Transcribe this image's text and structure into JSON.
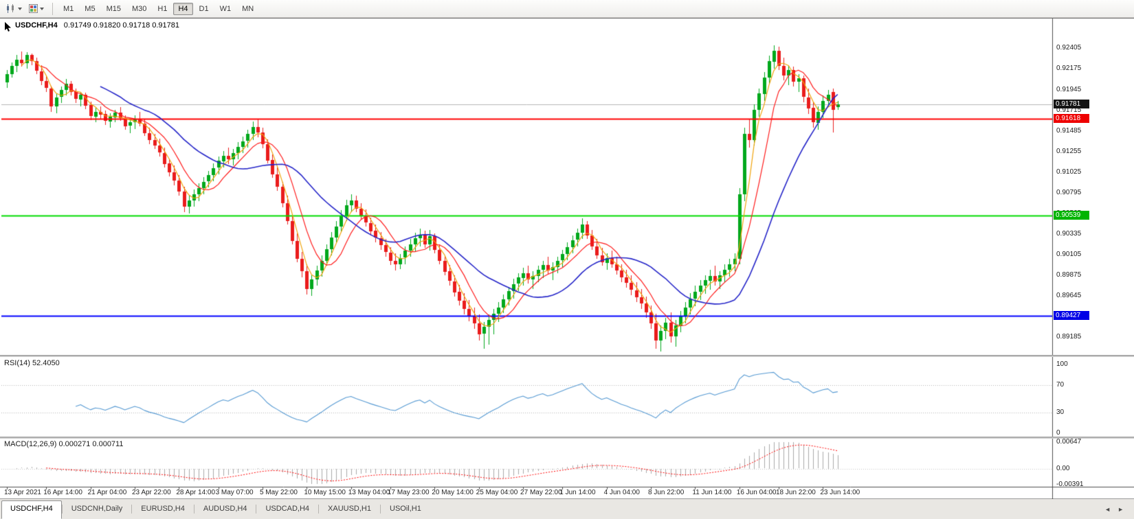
{
  "toolbar": {
    "icons": [
      {
        "name": "candlestick-chart-icon"
      },
      {
        "name": "chart-colors-icon"
      }
    ],
    "timeframes": {
      "options": [
        "M1",
        "M5",
        "M15",
        "M30",
        "H1",
        "H4",
        "D1",
        "W1",
        "MN"
      ],
      "active": "H4"
    }
  },
  "chart": {
    "title": {
      "symbol_period": "USDCHF,H4",
      "ohlc": "0.91749 0.91820 0.91718 0.91781"
    },
    "price_axis": {
      "ticks": [
        "0.92405",
        "0.92175",
        "0.91945",
        "0.91715",
        "0.91485",
        "0.91255",
        "0.91025",
        "0.90795",
        "0.90565",
        "0.90335",
        "0.90105",
        "0.89875",
        "0.89645",
        "0.89415",
        "0.89185"
      ]
    },
    "badges": [
      {
        "name": "current-price",
        "label": "0.91781",
        "value": 0.91781,
        "bg": "#141414",
        "fg": "#ffffff"
      },
      {
        "name": "resistance-line",
        "label": "0.91618",
        "value": 0.91618,
        "bg": "#ee0000",
        "fg": "#ffffff"
      },
      {
        "name": "support-line-green",
        "label": "0.90539",
        "value": 0.90539,
        "bg": "#00b400",
        "fg": "#ffffff"
      },
      {
        "name": "support-line-blue",
        "label": "0.89427",
        "value": 0.89427,
        "bg": "#0000e6",
        "fg": "#ffffff"
      }
    ],
    "time_axis": {
      "labels": [
        {
          "label": "13 Apr 2021",
          "at": 0
        },
        {
          "label": "16 Apr 14:00",
          "at": 8
        },
        {
          "label": "21 Apr 04:00",
          "at": 17
        },
        {
          "label": "23 Apr 22:00",
          "at": 26
        },
        {
          "label": "28 Apr 14:00",
          "at": 35
        },
        {
          "label": "3 May 07:00",
          "at": 43
        },
        {
          "label": "5 May 22:00",
          "at": 52
        },
        {
          "label": "10 May 15:00",
          "at": 61
        },
        {
          "label": "13 May 04:00",
          "at": 70
        },
        {
          "label": "17 May 23:00",
          "at": 78
        },
        {
          "label": "20 May 14:00",
          "at": 87
        },
        {
          "label": "25 May 04:00",
          "at": 96
        },
        {
          "label": "27 May 22:00",
          "at": 105
        },
        {
          "label": "1 Jun 14:00",
          "at": 113
        },
        {
          "label": "4 Jun 04:00",
          "at": 122
        },
        {
          "label": "8 Jun 22:00",
          "at": 131
        },
        {
          "label": "11 Jun 14:00",
          "at": 140
        },
        {
          "label": "16 Jun 04:00",
          "at": 149
        },
        {
          "label": "18 Jun 22:00",
          "at": 157
        },
        {
          "label": "23 Jun 14:00",
          "at": 166
        }
      ]
    }
  },
  "indicators": {
    "rsi": {
      "label": "RSI(14) 52.4050",
      "period": 14,
      "ticks": [
        "100",
        "70",
        "30",
        "0"
      ],
      "levels": [
        70,
        30
      ],
      "color": "#5599d2",
      "range": [
        0,
        100
      ]
    },
    "macd": {
      "label": "MACD(12,26,9) 0.000271 0.000711",
      "params": [
        12,
        26,
        9
      ],
      "values": [
        "0.000271",
        "0.000711"
      ],
      "ticks": [
        "0.00647",
        "0.00",
        "-0.00391"
      ],
      "range": [
        -0.00391,
        0.00647
      ],
      "hist_color": "#a8a8a8",
      "signal_color": "#ff0000"
    }
  },
  "tabs": {
    "items": [
      {
        "label": "USDCHF,H4",
        "active": true
      },
      {
        "label": "USDCNH,Daily",
        "active": false
      },
      {
        "label": "EURUSD,H4",
        "active": false
      },
      {
        "label": "AUDUSD,H4",
        "active": false
      },
      {
        "label": "USDCAD,H4",
        "active": false
      },
      {
        "label": "XAUUSD,H1",
        "active": false
      },
      {
        "label": "USOil,H1",
        "active": false
      }
    ],
    "scroll_left": "◄",
    "scroll_right": "►"
  },
  "chart_data": {
    "type": "candlestick",
    "symbol": "USDCHF",
    "timeframe": "H4",
    "price_range": [
      0.8902,
      0.9266
    ],
    "colors": {
      "bull": "#00a81c",
      "bear": "#ea1c1c",
      "background": "#ffffff",
      "current_line": "#b4b4b4"
    },
    "overlays": [
      {
        "name": "ma-fast",
        "period": 4,
        "color": "#f0a30a",
        "width": 1.2
      },
      {
        "name": "ma-medium",
        "period": 8,
        "color": "#ff1a1a",
        "width": 1.2
      },
      {
        "name": "ma-slow",
        "period": 20,
        "color": "#2424c8",
        "width": 1.6
      }
    ],
    "hlines": [
      {
        "value": 0.91781,
        "color": "#b4b4b4",
        "width": 1,
        "style": "current"
      },
      {
        "value": 0.91618,
        "color": "#ff0000",
        "width": 2,
        "style": "solid"
      },
      {
        "value": 0.90539,
        "color": "#00dc00",
        "width": 2,
        "style": "solid"
      },
      {
        "value": 0.89427,
        "color": "#0000ff",
        "width": 2,
        "style": "solid"
      }
    ],
    "candles": [
      [
        0.9203,
        0.9216,
        0.9196,
        0.9212
      ],
      [
        0.9212,
        0.9225,
        0.9208,
        0.9221
      ],
      [
        0.9221,
        0.9233,
        0.9214,
        0.9228
      ],
      [
        0.9228,
        0.9237,
        0.922,
        0.9224
      ],
      [
        0.9224,
        0.9236,
        0.9218,
        0.9233
      ],
      [
        0.9233,
        0.9235,
        0.9222,
        0.9226
      ],
      [
        0.9226,
        0.923,
        0.9212,
        0.9215
      ],
      [
        0.9215,
        0.9222,
        0.92,
        0.9204
      ],
      [
        0.9204,
        0.921,
        0.9192,
        0.9196
      ],
      [
        0.9196,
        0.9199,
        0.917,
        0.9176
      ],
      [
        0.9176,
        0.919,
        0.9168,
        0.9186
      ],
      [
        0.9186,
        0.9198,
        0.918,
        0.9194
      ],
      [
        0.9194,
        0.9206,
        0.9188,
        0.9201
      ],
      [
        0.9201,
        0.9204,
        0.9188,
        0.9192
      ],
      [
        0.9192,
        0.9196,
        0.918,
        0.9184
      ],
      [
        0.9184,
        0.9192,
        0.9176,
        0.9189
      ],
      [
        0.9189,
        0.9191,
        0.9173,
        0.9177
      ],
      [
        0.9177,
        0.9181,
        0.916,
        0.9165
      ],
      [
        0.9165,
        0.9174,
        0.9158,
        0.917
      ],
      [
        0.917,
        0.9176,
        0.9162,
        0.9167
      ],
      [
        0.9167,
        0.9171,
        0.9155,
        0.9159
      ],
      [
        0.9159,
        0.9168,
        0.9152,
        0.9164
      ],
      [
        0.9164,
        0.9172,
        0.9158,
        0.9169
      ],
      [
        0.9169,
        0.9175,
        0.916,
        0.9163
      ],
      [
        0.9163,
        0.9166,
        0.915,
        0.9154
      ],
      [
        0.9154,
        0.9162,
        0.9146,
        0.9158
      ],
      [
        0.9158,
        0.9166,
        0.9151,
        0.9162
      ],
      [
        0.9162,
        0.917,
        0.9154,
        0.9157
      ],
      [
        0.9157,
        0.9161,
        0.9143,
        0.9146
      ],
      [
        0.9146,
        0.9152,
        0.9134,
        0.9138
      ],
      [
        0.9138,
        0.9145,
        0.9128,
        0.9132
      ],
      [
        0.9132,
        0.914,
        0.912,
        0.9124
      ],
      [
        0.9124,
        0.913,
        0.9108,
        0.9112
      ],
      [
        0.9112,
        0.9118,
        0.9098,
        0.9102
      ],
      [
        0.9102,
        0.911,
        0.9088,
        0.9093
      ],
      [
        0.9093,
        0.9099,
        0.9076,
        0.9081
      ],
      [
        0.9081,
        0.9086,
        0.9058,
        0.9064
      ],
      [
        0.9064,
        0.9076,
        0.9056,
        0.9071
      ],
      [
        0.9071,
        0.9083,
        0.9064,
        0.9078
      ],
      [
        0.9078,
        0.909,
        0.907,
        0.9085
      ],
      [
        0.9085,
        0.9097,
        0.9078,
        0.9092
      ],
      [
        0.9092,
        0.9104,
        0.9086,
        0.9099
      ],
      [
        0.9099,
        0.9112,
        0.9092,
        0.9107
      ],
      [
        0.9107,
        0.912,
        0.91,
        0.9115
      ],
      [
        0.9115,
        0.9126,
        0.9108,
        0.9121
      ],
      [
        0.9121,
        0.913,
        0.9112,
        0.9117
      ],
      [
        0.9117,
        0.9128,
        0.911,
        0.9124
      ],
      [
        0.9124,
        0.9136,
        0.9117,
        0.9131
      ],
      [
        0.9131,
        0.9142,
        0.9124,
        0.9137
      ],
      [
        0.9137,
        0.915,
        0.913,
        0.9145
      ],
      [
        0.9145,
        0.9159,
        0.9138,
        0.9153
      ],
      [
        0.9153,
        0.9161,
        0.9141,
        0.9147
      ],
      [
        0.9147,
        0.9152,
        0.9129,
        0.9134
      ],
      [
        0.9134,
        0.9139,
        0.9112,
        0.9116
      ],
      [
        0.9116,
        0.9122,
        0.9096,
        0.91
      ],
      [
        0.91,
        0.9108,
        0.9082,
        0.9086
      ],
      [
        0.9086,
        0.9092,
        0.9064,
        0.9068
      ],
      [
        0.9068,
        0.9076,
        0.9044,
        0.9048
      ],
      [
        0.9048,
        0.9056,
        0.9022,
        0.9026
      ],
      [
        0.9026,
        0.9034,
        0.9002,
        0.9006
      ],
      [
        0.9006,
        0.9014,
        0.8986,
        0.8992
      ],
      [
        0.8992,
        0.9,
        0.8966,
        0.8972
      ],
      [
        0.8972,
        0.8988,
        0.8965,
        0.8983
      ],
      [
        0.8983,
        0.8998,
        0.8976,
        0.8993
      ],
      [
        0.8993,
        0.901,
        0.8986,
        0.9004
      ],
      [
        0.9004,
        0.9022,
        0.8998,
        0.9017
      ],
      [
        0.9017,
        0.9036,
        0.901,
        0.903
      ],
      [
        0.903,
        0.9048,
        0.9024,
        0.9042
      ],
      [
        0.9042,
        0.906,
        0.9036,
        0.9054
      ],
      [
        0.9054,
        0.9072,
        0.9048,
        0.9066
      ],
      [
        0.9066,
        0.9078,
        0.9058,
        0.9071
      ],
      [
        0.9071,
        0.9076,
        0.9058,
        0.9062
      ],
      [
        0.9062,
        0.9068,
        0.905,
        0.9054
      ],
      [
        0.9054,
        0.9061,
        0.9042,
        0.9046
      ],
      [
        0.9046,
        0.9052,
        0.9032,
        0.9037
      ],
      [
        0.9037,
        0.9044,
        0.9024,
        0.9029
      ],
      [
        0.9029,
        0.9036,
        0.9016,
        0.9021
      ],
      [
        0.9021,
        0.9028,
        0.9008,
        0.9013
      ],
      [
        0.9013,
        0.9019,
        0.8999,
        0.9004
      ],
      [
        0.9004,
        0.9012,
        0.8993,
        0.9
      ],
      [
        0.9,
        0.9011,
        0.8994,
        0.9007
      ],
      [
        0.9007,
        0.902,
        0.9,
        0.9015
      ],
      [
        0.9015,
        0.9028,
        0.9008,
        0.9022
      ],
      [
        0.9022,
        0.9035,
        0.9014,
        0.9029
      ],
      [
        0.9029,
        0.904,
        0.902,
        0.9033
      ],
      [
        0.9033,
        0.9037,
        0.9018,
        0.9022
      ],
      [
        0.9022,
        0.9038,
        0.9015,
        0.9031
      ],
      [
        0.9031,
        0.9034,
        0.9012,
        0.9016
      ],
      [
        0.9016,
        0.9022,
        0.9,
        0.9004
      ],
      [
        0.9004,
        0.901,
        0.8988,
        0.8992
      ],
      [
        0.8992,
        0.8999,
        0.8976,
        0.8981
      ],
      [
        0.8981,
        0.8988,
        0.8964,
        0.8969
      ],
      [
        0.8969,
        0.8977,
        0.8954,
        0.8959
      ],
      [
        0.8959,
        0.8968,
        0.8944,
        0.895
      ],
      [
        0.895,
        0.896,
        0.8936,
        0.8942
      ],
      [
        0.8942,
        0.8952,
        0.8928,
        0.8934
      ],
      [
        0.8934,
        0.8944,
        0.8915,
        0.8922
      ],
      [
        0.8922,
        0.8936,
        0.8906,
        0.893
      ],
      [
        0.893,
        0.8944,
        0.891,
        0.8938
      ],
      [
        0.8938,
        0.895,
        0.8922,
        0.8945
      ],
      [
        0.8945,
        0.8958,
        0.8936,
        0.8952
      ],
      [
        0.8952,
        0.8966,
        0.8945,
        0.8961
      ],
      [
        0.8961,
        0.8975,
        0.8954,
        0.897
      ],
      [
        0.897,
        0.8984,
        0.8962,
        0.8978
      ],
      [
        0.8978,
        0.899,
        0.897,
        0.8985
      ],
      [
        0.8985,
        0.8996,
        0.8976,
        0.899
      ],
      [
        0.899,
        0.8998,
        0.8978,
        0.8983
      ],
      [
        0.8983,
        0.8992,
        0.8972,
        0.8987
      ],
      [
        0.8987,
        0.8998,
        0.898,
        0.8994
      ],
      [
        0.8994,
        0.9004,
        0.8985,
        0.8999
      ],
      [
        0.8999,
        0.9008,
        0.8988,
        0.8993
      ],
      [
        0.8993,
        0.9002,
        0.8982,
        0.8997
      ],
      [
        0.8997,
        0.9008,
        0.899,
        0.9004
      ],
      [
        0.9004,
        0.9016,
        0.8997,
        0.9011
      ],
      [
        0.9011,
        0.9024,
        0.9004,
        0.9019
      ],
      [
        0.9019,
        0.9032,
        0.9012,
        0.9027
      ],
      [
        0.9027,
        0.904,
        0.902,
        0.9035
      ],
      [
        0.9035,
        0.9051,
        0.9028,
        0.9044
      ],
      [
        0.9044,
        0.9048,
        0.9028,
        0.9032
      ],
      [
        0.9032,
        0.9038,
        0.9016,
        0.902
      ],
      [
        0.902,
        0.9028,
        0.9006,
        0.901
      ],
      [
        0.901,
        0.9018,
        0.8998,
        0.9002
      ],
      [
        0.9002,
        0.9012,
        0.8994,
        0.9007
      ],
      [
        0.9007,
        0.9015,
        0.8996,
        0.9
      ],
      [
        0.9,
        0.9008,
        0.8988,
        0.8993
      ],
      [
        0.8993,
        0.9,
        0.898,
        0.8985
      ],
      [
        0.8985,
        0.8994,
        0.8974,
        0.8979
      ],
      [
        0.8979,
        0.8988,
        0.8966,
        0.8971
      ],
      [
        0.8971,
        0.898,
        0.8958,
        0.8963
      ],
      [
        0.8963,
        0.8972,
        0.895,
        0.8956
      ],
      [
        0.8956,
        0.8964,
        0.894,
        0.8946
      ],
      [
        0.8946,
        0.8954,
        0.8928,
        0.8934
      ],
      [
        0.8934,
        0.8945,
        0.8906,
        0.8915
      ],
      [
        0.8915,
        0.8932,
        0.8903,
        0.8926
      ],
      [
        0.8926,
        0.894,
        0.8916,
        0.8935
      ],
      [
        0.8935,
        0.8946,
        0.8912,
        0.892
      ],
      [
        0.892,
        0.8938,
        0.8908,
        0.8932
      ],
      [
        0.8932,
        0.8948,
        0.8924,
        0.8942
      ],
      [
        0.8942,
        0.8958,
        0.8934,
        0.8952
      ],
      [
        0.8952,
        0.8968,
        0.8944,
        0.8961
      ],
      [
        0.8961,
        0.8976,
        0.8953,
        0.8969
      ],
      [
        0.8969,
        0.8982,
        0.896,
        0.8976
      ],
      [
        0.8976,
        0.8988,
        0.8967,
        0.8982
      ],
      [
        0.8982,
        0.8994,
        0.8972,
        0.8987
      ],
      [
        0.8987,
        0.8998,
        0.8976,
        0.8981
      ],
      [
        0.8981,
        0.8992,
        0.8972,
        0.8988
      ],
      [
        0.8988,
        0.9,
        0.898,
        0.8994
      ],
      [
        0.8994,
        0.9006,
        0.8986,
        0.9
      ],
      [
        0.9,
        0.9012,
        0.8992,
        0.9006
      ],
      [
        0.9006,
        0.9085,
        0.9,
        0.9078
      ],
      [
        0.9078,
        0.9152,
        0.907,
        0.9145
      ],
      [
        0.9145,
        0.9162,
        0.913,
        0.9138
      ],
      [
        0.9138,
        0.9178,
        0.9132,
        0.9172
      ],
      [
        0.9172,
        0.9196,
        0.9165,
        0.919
      ],
      [
        0.919,
        0.9214,
        0.9182,
        0.9208
      ],
      [
        0.9208,
        0.9232,
        0.92,
        0.9226
      ],
      [
        0.9226,
        0.9244,
        0.9218,
        0.9238
      ],
      [
        0.9238,
        0.9242,
        0.9216,
        0.9221
      ],
      [
        0.9221,
        0.923,
        0.9205,
        0.921
      ],
      [
        0.921,
        0.9222,
        0.92,
        0.9216
      ],
      [
        0.9216,
        0.922,
        0.9198,
        0.9203
      ],
      [
        0.9203,
        0.9212,
        0.9192,
        0.9207
      ],
      [
        0.9207,
        0.921,
        0.918,
        0.9186
      ],
      [
        0.9186,
        0.9196,
        0.9168,
        0.9174
      ],
      [
        0.9174,
        0.918,
        0.9152,
        0.9158
      ],
      [
        0.9158,
        0.9176,
        0.915,
        0.917
      ],
      [
        0.917,
        0.9188,
        0.9163,
        0.9182
      ],
      [
        0.9182,
        0.9194,
        0.9176,
        0.9189
      ],
      [
        0.9192,
        0.9196,
        0.9147,
        0.9172
      ],
      [
        0.9175,
        0.9182,
        0.9172,
        0.9178
      ]
    ]
  }
}
